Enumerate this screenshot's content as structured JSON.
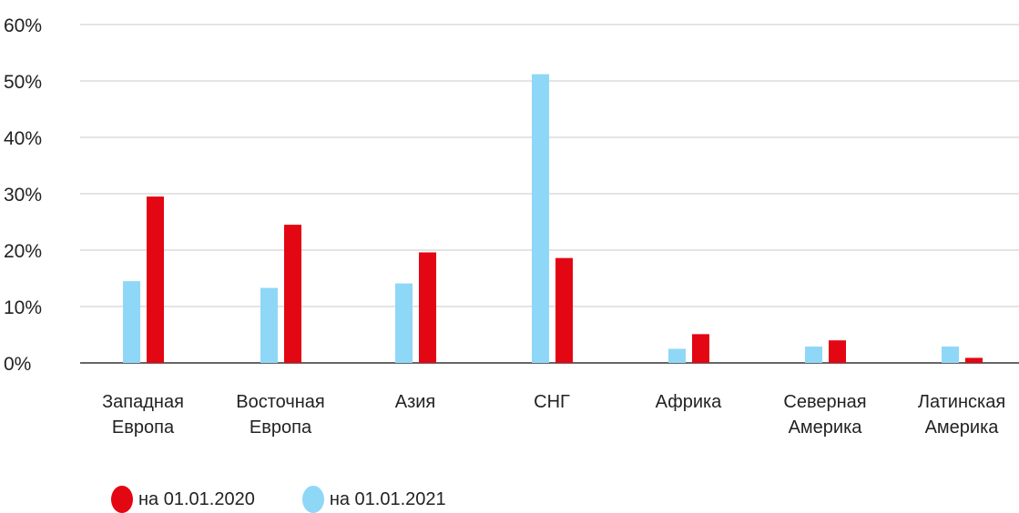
{
  "chart_data": {
    "type": "bar",
    "categories": [
      [
        "Западная",
        "Европа"
      ],
      [
        "Восточная",
        "Европа"
      ],
      [
        "Азия"
      ],
      [
        "СНГ"
      ],
      [
        "Африка"
      ],
      [
        "Северная",
        "Америка"
      ],
      [
        "Латинская",
        "Америка"
      ]
    ],
    "series": [
      {
        "name": "на 01.01.2021",
        "color": "#8fd7f7",
        "values": [
          14.5,
          13.3,
          14.1,
          51.2,
          2.5,
          2.9,
          2.9
        ]
      },
      {
        "name": "на 01.01.2020",
        "color": "#e30613",
        "values": [
          29.5,
          24.5,
          19.6,
          18.6,
          5.1,
          4.0,
          0.9
        ]
      }
    ],
    "ylim": [
      0,
      60
    ],
    "yticks": [
      "0%",
      "10%",
      "20%",
      "30%",
      "40%",
      "50%",
      "60%"
    ],
    "grid": true,
    "legend_position": "bottom-left"
  },
  "legend": [
    {
      "label": "на 01.01.2020",
      "color": "#e30613"
    },
    {
      "label": "на 01.01.2021",
      "color": "#8fd7f7"
    }
  ]
}
